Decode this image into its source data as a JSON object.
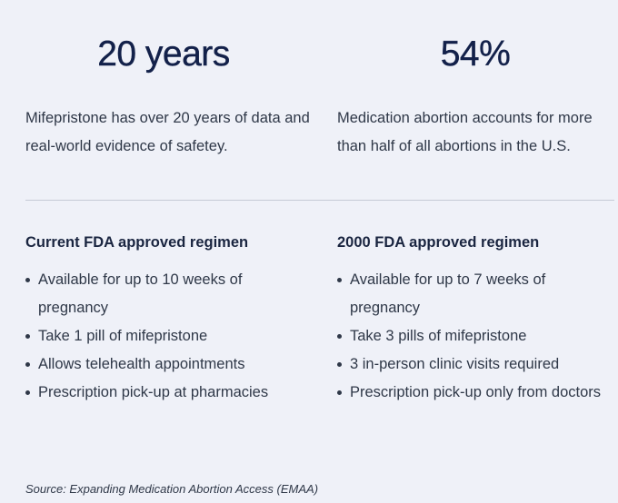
{
  "stats": {
    "left": {
      "value": "20 years",
      "description": "Mifepristone has over 20 years of data and real-world evidence of safetey."
    },
    "right": {
      "value": "54%",
      "description": "Medication abortion accounts for more than half of all abortions in the U.S."
    }
  },
  "regimens": {
    "current": {
      "title": "Current FDA approved regimen",
      "items": [
        "Available for up to 10 weeks of pregnancy",
        "Take 1 pill of mifepristone",
        "Allows telehealth appointments",
        "Prescription pick-up at pharmacies"
      ]
    },
    "previous": {
      "title": "2000 FDA approved regimen",
      "items": [
        "Available for up to 7 weeks of pregnancy",
        "Take 3 pills of mifepristone",
        "3 in-person clinic visits required",
        "Prescription pick-up only from doctors"
      ]
    }
  },
  "source": "Source: Expanding Medication Abortion Access (EMAA)"
}
